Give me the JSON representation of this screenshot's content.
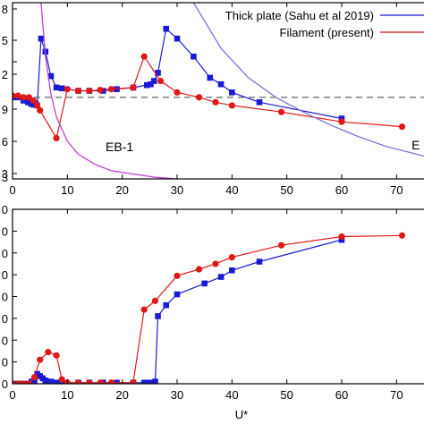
{
  "chart_data": [
    {
      "type": "line",
      "title": "",
      "xlabel": "",
      "ylabel": "",
      "xlim": [
        0,
        75
      ],
      "ylim": [
        0.8,
        1.88
      ],
      "x_ticks": [
        0,
        10,
        20,
        30,
        40,
        50,
        60,
        70
      ],
      "x_tick_labels": [
        "0",
        "10",
        "20",
        "30",
        "40",
        "50",
        "60",
        "70"
      ],
      "y_tick_labels": [
        "8",
        "5",
        "",
        "2",
        "9",
        "6",
        "3",
        "3"
      ],
      "legend_position": "top-right",
      "reference_line": {
        "y": 1.3,
        "style": "dashed",
        "color": "#555555"
      },
      "series": [
        {
          "name": "Thick plate (Sahu et al 2019)",
          "color": "#1a1ad6",
          "marker": "square",
          "x": [
            0,
            1,
            2,
            2.8,
            3.4,
            3.9,
            4.2,
            4.5,
            5.2,
            6.0,
            7.0,
            8.0,
            9.0,
            12.0,
            14.0,
            16.5,
            19.0,
            22.0,
            24.5,
            25.2,
            25.8,
            26.5,
            28.0,
            30.0,
            33.0,
            36.0,
            38.0,
            40.0,
            45.0,
            60.0
          ],
          "y": [
            1.3,
            1.3,
            1.28,
            1.27,
            1.26,
            1.255,
            1.26,
            1.25,
            1.66,
            1.58,
            1.43,
            1.36,
            1.355,
            1.34,
            1.34,
            1.34,
            1.35,
            1.36,
            1.375,
            1.38,
            1.4,
            1.45,
            1.72,
            1.66,
            1.55,
            1.42,
            1.38,
            1.33,
            1.27,
            1.17
          ]
        },
        {
          "name": "Filament (present)",
          "color": "#e01818",
          "marker": "circle",
          "x": [
            0,
            1,
            2,
            3,
            3.8,
            4.5,
            5.0,
            8.0,
            10.0,
            12.0,
            14.0,
            16.0,
            18.0,
            22.0,
            24.0,
            27.0,
            30.0,
            34.0,
            37.0,
            40.0,
            49.0,
            60.0,
            71.0
          ],
          "y": [
            1.31,
            1.31,
            1.3,
            1.3,
            1.28,
            1.25,
            1.22,
            1.05,
            1.35,
            1.34,
            1.34,
            1.345,
            1.35,
            1.36,
            1.55,
            1.4,
            1.33,
            1.3,
            1.27,
            1.25,
            1.21,
            1.15,
            1.12
          ]
        },
        {
          "name": "",
          "color": "#7777dd",
          "marker": "none",
          "x": [
            33.0,
            38.0,
            43.0,
            48.0,
            53.0,
            58.0,
            63.0,
            68.0,
            75.0
          ],
          "y": [
            1.88,
            1.6,
            1.42,
            1.3,
            1.21,
            1.13,
            1.06,
            1.0,
            0.94
          ]
        },
        {
          "name": "",
          "color": "#bb44cc",
          "marker": "none",
          "x": [
            5.2,
            6.0,
            7.0,
            8.0,
            10.0,
            12.0,
            15.0,
            18.0,
            22.0,
            26.0,
            30.0
          ],
          "y": [
            1.88,
            1.55,
            1.32,
            1.18,
            1.03,
            0.95,
            0.89,
            0.85,
            0.83,
            0.81,
            0.8
          ]
        }
      ],
      "annotations": [
        {
          "text": "EB-1",
          "x": 19.5,
          "y": 0.97
        },
        {
          "text": "E",
          "x": 73.5,
          "y": 0.98
        }
      ]
    },
    {
      "type": "line",
      "title": "",
      "xlabel": "U*",
      "ylabel": "",
      "xlim": [
        0,
        75
      ],
      "ylim": [
        0,
        8
      ],
      "x_ticks": [
        0,
        10,
        20,
        30,
        40,
        50,
        60,
        70
      ],
      "x_tick_labels": [
        "0",
        "10",
        "20",
        "30",
        "40",
        "50",
        "60",
        "70"
      ],
      "y_ticks": [
        0,
        1,
        2,
        3,
        4,
        5,
        6,
        7,
        8
      ],
      "y_tick_labels": [
        "0",
        "0",
        "0",
        "0",
        "0",
        "0",
        "0",
        "0",
        "0"
      ],
      "series": [
        {
          "name": "Thick plate (Sahu et al 2019)",
          "color": "#1a1ad6",
          "marker": "square",
          "x": [
            0,
            1,
            2,
            3,
            3.5,
            4.0,
            4.5,
            5.0,
            5.5,
            6.0,
            7.0,
            8.0,
            9.0,
            12.0,
            14.0,
            16.5,
            19.0,
            22.0,
            24.0,
            25.0,
            26.0,
            26.5,
            28.0,
            30.0,
            35.0,
            38.0,
            40.0,
            45.0,
            60.0
          ],
          "y": [
            0,
            0,
            0,
            0,
            0.1,
            0.15,
            0.45,
            0.35,
            0.25,
            0.15,
            0.1,
            0.05,
            0.05,
            0.05,
            0.05,
            0.05,
            0.05,
            0.05,
            0.05,
            0.05,
            0.1,
            3.1,
            3.6,
            4.1,
            4.6,
            4.9,
            5.2,
            5.6,
            6.6
          ]
        },
        {
          "name": "Filament (present)",
          "color": "#e01818",
          "marker": "circle",
          "x": [
            0,
            1,
            2,
            3,
            4.0,
            5.0,
            6.5,
            8.0,
            9.0,
            10.0,
            12.0,
            14.0,
            16.0,
            18.0,
            22.0,
            24.0,
            26.0,
            30.0,
            34.0,
            37.0,
            40.0,
            49.0,
            60.0,
            71.0
          ],
          "y": [
            0,
            0,
            0,
            0,
            0.3,
            1.1,
            1.45,
            1.3,
            0.2,
            0.05,
            0.05,
            0.05,
            0.05,
            0.05,
            0.05,
            3.4,
            3.8,
            4.95,
            5.25,
            5.5,
            5.8,
            6.35,
            6.75,
            6.8
          ]
        }
      ]
    }
  ],
  "colors": {
    "frame": "#000000",
    "blue": "#1a1ad6",
    "red": "#e01818",
    "light_blue": "#7777dd",
    "purple": "#bb44cc",
    "dash": "#555555"
  }
}
